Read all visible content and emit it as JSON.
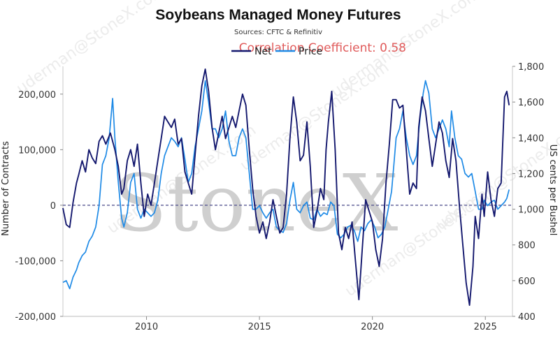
{
  "header": {
    "title": "Soybeans Managed Money Futures",
    "subtitle": "Sources: CFTC & Refinitiv",
    "correlation": "Correlation Coefficient: 0.58"
  },
  "watermark": {
    "brand": "StoneX",
    "email": "uderman@StoneX.com"
  },
  "colors": {
    "net": "#14186e",
    "price": "#1e8ae6",
    "zero_line": "#4a4a8a",
    "correlation": "#e05a5a"
  },
  "chart_data": {
    "type": "line",
    "title": "Soybeans Managed Money Futures",
    "legend_position": "top-center",
    "grid": false,
    "x_range": [
      2006.3,
      2026.2
    ],
    "x_ticks": [
      2010,
      2015,
      2020,
      2025
    ],
    "y_left": {
      "label": "Number of Contracts",
      "range": [
        -200000,
        250000
      ],
      "ticks": [
        -200000,
        -100000,
        0,
        100000,
        200000
      ],
      "tick_labels": [
        "-200,000",
        "-100,000",
        "0",
        "100,000",
        "200,000"
      ]
    },
    "y_right": {
      "label": "US cents per Bushel",
      "range": [
        400,
        1800
      ],
      "ticks": [
        400,
        600,
        800,
        1000,
        1200,
        1400,
        1600,
        1800
      ],
      "tick_labels": [
        "400",
        "600",
        "800",
        "1,000",
        "1,200",
        "1,400",
        "1,600",
        "1,800"
      ]
    },
    "series": [
      {
        "name": "Net",
        "axis": "left",
        "points": [
          [
            2006.3,
            -5000
          ],
          [
            2006.45,
            -35000
          ],
          [
            2006.6,
            -40000
          ],
          [
            2006.75,
            5000
          ],
          [
            2006.9,
            40000
          ],
          [
            2007.0,
            55000
          ],
          [
            2007.15,
            80000
          ],
          [
            2007.3,
            60000
          ],
          [
            2007.45,
            100000
          ],
          [
            2007.6,
            85000
          ],
          [
            2007.75,
            75000
          ],
          [
            2007.9,
            115000
          ],
          [
            2008.05,
            125000
          ],
          [
            2008.2,
            110000
          ],
          [
            2008.4,
            130000
          ],
          [
            2008.6,
            100000
          ],
          [
            2008.75,
            70000
          ],
          [
            2008.9,
            20000
          ],
          [
            2009.0,
            30000
          ],
          [
            2009.15,
            80000
          ],
          [
            2009.3,
            100000
          ],
          [
            2009.45,
            70000
          ],
          [
            2009.6,
            110000
          ],
          [
            2009.75,
            40000
          ],
          [
            2009.9,
            -20000
          ],
          [
            2010.05,
            20000
          ],
          [
            2010.2,
            0
          ],
          [
            2010.35,
            40000
          ],
          [
            2010.5,
            80000
          ],
          [
            2010.65,
            120000
          ],
          [
            2010.8,
            160000
          ],
          [
            2010.95,
            150000
          ],
          [
            2011.1,
            140000
          ],
          [
            2011.25,
            155000
          ],
          [
            2011.4,
            110000
          ],
          [
            2011.55,
            120000
          ],
          [
            2011.7,
            60000
          ],
          [
            2011.85,
            40000
          ],
          [
            2012.0,
            20000
          ],
          [
            2012.15,
            90000
          ],
          [
            2012.3,
            160000
          ],
          [
            2012.45,
            215000
          ],
          [
            2012.6,
            245000
          ],
          [
            2012.75,
            205000
          ],
          [
            2012.9,
            140000
          ],
          [
            2013.05,
            100000
          ],
          [
            2013.2,
            130000
          ],
          [
            2013.35,
            160000
          ],
          [
            2013.5,
            120000
          ],
          [
            2013.65,
            140000
          ],
          [
            2013.8,
            160000
          ],
          [
            2013.95,
            140000
          ],
          [
            2014.1,
            170000
          ],
          [
            2014.25,
            200000
          ],
          [
            2014.4,
            180000
          ],
          [
            2014.55,
            100000
          ],
          [
            2014.7,
            30000
          ],
          [
            2014.85,
            -20000
          ],
          [
            2015.0,
            -50000
          ],
          [
            2015.15,
            -30000
          ],
          [
            2015.3,
            -60000
          ],
          [
            2015.45,
            -30000
          ],
          [
            2015.6,
            10000
          ],
          [
            2015.75,
            -20000
          ],
          [
            2015.9,
            -50000
          ],
          [
            2016.05,
            -40000
          ],
          [
            2016.2,
            20000
          ],
          [
            2016.35,
            120000
          ],
          [
            2016.5,
            195000
          ],
          [
            2016.65,
            150000
          ],
          [
            2016.8,
            80000
          ],
          [
            2016.95,
            90000
          ],
          [
            2017.1,
            150000
          ],
          [
            2017.25,
            70000
          ],
          [
            2017.4,
            -40000
          ],
          [
            2017.55,
            -10000
          ],
          [
            2017.7,
            30000
          ],
          [
            2017.85,
            10000
          ],
          [
            2017.95,
            100000
          ],
          [
            2018.05,
            150000
          ],
          [
            2018.2,
            205000
          ],
          [
            2018.35,
            100000
          ],
          [
            2018.5,
            -50000
          ],
          [
            2018.65,
            -80000
          ],
          [
            2018.8,
            -40000
          ],
          [
            2018.95,
            -60000
          ],
          [
            2019.1,
            -30000
          ],
          [
            2019.25,
            -100000
          ],
          [
            2019.4,
            -170000
          ],
          [
            2019.55,
            -80000
          ],
          [
            2019.7,
            10000
          ],
          [
            2019.85,
            -10000
          ],
          [
            2020.0,
            -30000
          ],
          [
            2020.15,
            -80000
          ],
          [
            2020.3,
            -110000
          ],
          [
            2020.45,
            -60000
          ],
          [
            2020.6,
            40000
          ],
          [
            2020.75,
            110000
          ],
          [
            2020.9,
            190000
          ],
          [
            2021.05,
            190000
          ],
          [
            2021.2,
            175000
          ],
          [
            2021.35,
            180000
          ],
          [
            2021.5,
            100000
          ],
          [
            2021.65,
            20000
          ],
          [
            2021.8,
            40000
          ],
          [
            2021.95,
            30000
          ],
          [
            2022.05,
            140000
          ],
          [
            2022.2,
            195000
          ],
          [
            2022.35,
            170000
          ],
          [
            2022.5,
            120000
          ],
          [
            2022.65,
            70000
          ],
          [
            2022.8,
            110000
          ],
          [
            2022.95,
            150000
          ],
          [
            2023.1,
            130000
          ],
          [
            2023.25,
            80000
          ],
          [
            2023.4,
            50000
          ],
          [
            2023.55,
            120000
          ],
          [
            2023.7,
            80000
          ],
          [
            2023.85,
            0
          ],
          [
            2024.0,
            -70000
          ],
          [
            2024.15,
            -140000
          ],
          [
            2024.3,
            -180000
          ],
          [
            2024.45,
            -110000
          ],
          [
            2024.55,
            -20000
          ],
          [
            2024.7,
            -60000
          ],
          [
            2024.85,
            20000
          ],
          [
            2024.95,
            -20000
          ],
          [
            2025.1,
            60000
          ],
          [
            2025.25,
            10000
          ],
          [
            2025.4,
            -20000
          ],
          [
            2025.55,
            30000
          ],
          [
            2025.7,
            40000
          ],
          [
            2025.85,
            195000
          ],
          [
            2025.95,
            205000
          ],
          [
            2026.05,
            180000
          ]
        ]
      },
      {
        "name": "Price",
        "axis": "right",
        "points": [
          [
            2006.3,
            590
          ],
          [
            2006.45,
            600
          ],
          [
            2006.6,
            555
          ],
          [
            2006.75,
            620
          ],
          [
            2006.9,
            660
          ],
          [
            2007.0,
            700
          ],
          [
            2007.15,
            740
          ],
          [
            2007.3,
            760
          ],
          [
            2007.45,
            820
          ],
          [
            2007.6,
            850
          ],
          [
            2007.75,
            900
          ],
          [
            2007.9,
            1020
          ],
          [
            2008.05,
            1250
          ],
          [
            2008.2,
            1300
          ],
          [
            2008.35,
            1400
          ],
          [
            2008.5,
            1620
          ],
          [
            2008.6,
            1400
          ],
          [
            2008.75,
            1150
          ],
          [
            2008.9,
            950
          ],
          [
            2009.0,
            900
          ],
          [
            2009.15,
            980
          ],
          [
            2009.3,
            1150
          ],
          [
            2009.45,
            1200
          ],
          [
            2009.6,
            1000
          ],
          [
            2009.75,
            950
          ],
          [
            2009.9,
            1000
          ],
          [
            2010.05,
            980
          ],
          [
            2010.2,
            960
          ],
          [
            2010.35,
            980
          ],
          [
            2010.5,
            1050
          ],
          [
            2010.65,
            1200
          ],
          [
            2010.8,
            1300
          ],
          [
            2010.95,
            1350
          ],
          [
            2011.1,
            1400
          ],
          [
            2011.25,
            1380
          ],
          [
            2011.4,
            1350
          ],
          [
            2011.55,
            1400
          ],
          [
            2011.7,
            1280
          ],
          [
            2011.85,
            1150
          ],
          [
            2012.0,
            1200
          ],
          [
            2012.15,
            1350
          ],
          [
            2012.3,
            1450
          ],
          [
            2012.45,
            1550
          ],
          [
            2012.6,
            1720
          ],
          [
            2012.75,
            1600
          ],
          [
            2012.9,
            1450
          ],
          [
            2013.05,
            1450
          ],
          [
            2013.2,
            1400
          ],
          [
            2013.35,
            1450
          ],
          [
            2013.5,
            1550
          ],
          [
            2013.65,
            1380
          ],
          [
            2013.8,
            1300
          ],
          [
            2013.95,
            1300
          ],
          [
            2014.1,
            1400
          ],
          [
            2014.25,
            1450
          ],
          [
            2014.4,
            1400
          ],
          [
            2014.55,
            1200
          ],
          [
            2014.7,
            1000
          ],
          [
            2014.85,
            1000
          ],
          [
            2015.0,
            1020
          ],
          [
            2015.15,
            980
          ],
          [
            2015.3,
            950
          ],
          [
            2015.45,
            980
          ],
          [
            2015.6,
            1000
          ],
          [
            2015.75,
            900
          ],
          [
            2015.9,
            880
          ],
          [
            2016.05,
            870
          ],
          [
            2016.2,
            920
          ],
          [
            2016.35,
            1050
          ],
          [
            2016.5,
            1150
          ],
          [
            2016.65,
            1000
          ],
          [
            2016.8,
            980
          ],
          [
            2016.95,
            1020
          ],
          [
            2017.1,
            1040
          ],
          [
            2017.25,
            950
          ],
          [
            2017.4,
            940
          ],
          [
            2017.55,
            1000
          ],
          [
            2017.7,
            960
          ],
          [
            2017.85,
            980
          ],
          [
            2018.0,
            970
          ],
          [
            2018.15,
            1040
          ],
          [
            2018.3,
            1020
          ],
          [
            2018.45,
            860
          ],
          [
            2018.6,
            840
          ],
          [
            2018.75,
            860
          ],
          [
            2018.9,
            900
          ],
          [
            2019.05,
            910
          ],
          [
            2019.2,
            880
          ],
          [
            2019.35,
            820
          ],
          [
            2019.5,
            900
          ],
          [
            2019.65,
            880
          ],
          [
            2019.8,
            920
          ],
          [
            2019.95,
            940
          ],
          [
            2020.1,
            900
          ],
          [
            2020.25,
            840
          ],
          [
            2020.4,
            860
          ],
          [
            2020.55,
            900
          ],
          [
            2020.7,
            1000
          ],
          [
            2020.85,
            1100
          ],
          [
            2020.95,
            1250
          ],
          [
            2021.05,
            1400
          ],
          [
            2021.2,
            1450
          ],
          [
            2021.35,
            1550
          ],
          [
            2021.5,
            1400
          ],
          [
            2021.65,
            1300
          ],
          [
            2021.8,
            1250
          ],
          [
            2021.95,
            1300
          ],
          [
            2022.1,
            1500
          ],
          [
            2022.25,
            1650
          ],
          [
            2022.35,
            1720
          ],
          [
            2022.5,
            1650
          ],
          [
            2022.65,
            1450
          ],
          [
            2022.8,
            1400
          ],
          [
            2022.95,
            1450
          ],
          [
            2023.1,
            1500
          ],
          [
            2023.25,
            1450
          ],
          [
            2023.4,
            1350
          ],
          [
            2023.5,
            1550
          ],
          [
            2023.65,
            1400
          ],
          [
            2023.8,
            1300
          ],
          [
            2023.95,
            1280
          ],
          [
            2024.1,
            1200
          ],
          [
            2024.25,
            1180
          ],
          [
            2024.4,
            1200
          ],
          [
            2024.55,
            1100
          ],
          [
            2024.7,
            1000
          ],
          [
            2024.85,
            1000
          ],
          [
            2024.95,
            1050
          ],
          [
            2025.1,
            1020
          ],
          [
            2025.25,
            1040
          ],
          [
            2025.4,
            1050
          ],
          [
            2025.55,
            1000
          ],
          [
            2025.7,
            1020
          ],
          [
            2025.85,
            1040
          ],
          [
            2025.95,
            1060
          ],
          [
            2026.05,
            1110
          ]
        ]
      }
    ]
  }
}
